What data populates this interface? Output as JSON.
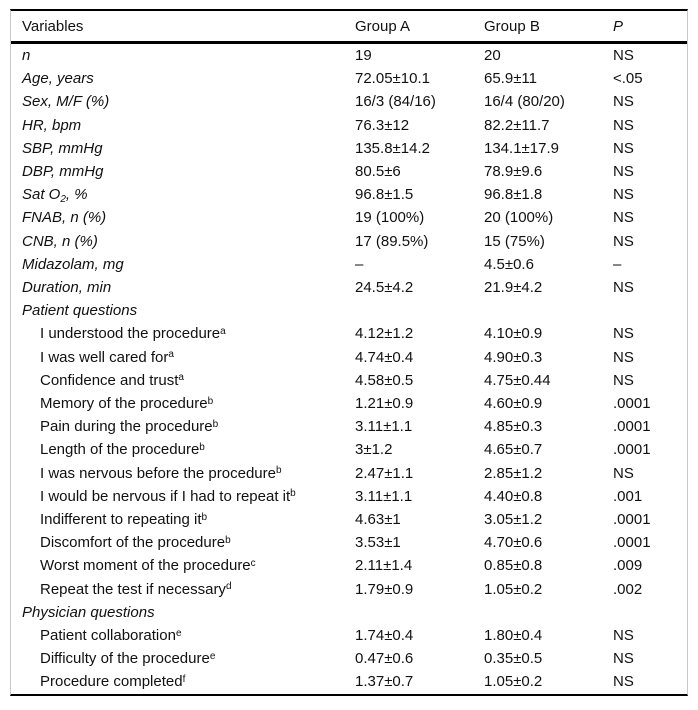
{
  "colors": {
    "background": "#ffffff",
    "text": "#111111",
    "rule": "#000000",
    "frame": "#c9c9c9"
  },
  "table": {
    "columns": [
      "Variables",
      "Group A",
      "Group B",
      "P"
    ],
    "rows": [
      {
        "italic": true,
        "indent": false,
        "section": false,
        "label": [
          [
            "t",
            "n"
          ]
        ],
        "values": [
          "19",
          "20",
          "NS"
        ]
      },
      {
        "italic": true,
        "indent": false,
        "section": false,
        "label": [
          [
            "t",
            "Age, years"
          ]
        ],
        "values": [
          "72.05±10.1",
          "65.9±11",
          "<.05"
        ]
      },
      {
        "italic": true,
        "indent": false,
        "section": false,
        "label": [
          [
            "t",
            "Sex, M/F (%)"
          ]
        ],
        "values": [
          "16/3 (84/16)",
          "16/4 (80/20)",
          "NS"
        ]
      },
      {
        "italic": true,
        "indent": false,
        "section": false,
        "label": [
          [
            "t",
            "HR, bpm"
          ]
        ],
        "values": [
          "76.3±12",
          "82.2±11.7",
          "NS"
        ]
      },
      {
        "italic": true,
        "indent": false,
        "section": false,
        "label": [
          [
            "t",
            "SBP, mmHg"
          ]
        ],
        "values": [
          "135.8±14.2",
          "134.1±17.9",
          "NS"
        ]
      },
      {
        "italic": true,
        "indent": false,
        "section": false,
        "label": [
          [
            "t",
            "DBP, mmHg"
          ]
        ],
        "values": [
          "80.5±6",
          "78.9±9.6",
          "NS"
        ]
      },
      {
        "italic": true,
        "indent": false,
        "section": false,
        "label": [
          [
            "t",
            "Sat O"
          ],
          [
            "sub",
            "2"
          ],
          [
            "t",
            ", %"
          ]
        ],
        "values": [
          "96.8±1.5",
          "96.8±1.8",
          "NS"
        ]
      },
      {
        "italic": true,
        "indent": false,
        "section": false,
        "label": [
          [
            "t",
            "FNAB, n (%)"
          ]
        ],
        "values": [
          "19 (100%)",
          "20 (100%)",
          "NS"
        ]
      },
      {
        "italic": true,
        "indent": false,
        "section": false,
        "label": [
          [
            "t",
            "CNB, n (%)"
          ]
        ],
        "values": [
          "17 (89.5%)",
          "15 (75%)",
          "NS"
        ]
      },
      {
        "italic": true,
        "indent": false,
        "section": false,
        "label": [
          [
            "t",
            "Midazolam, mg"
          ]
        ],
        "values": [
          "–",
          "4.5±0.6",
          "–"
        ]
      },
      {
        "italic": true,
        "indent": false,
        "section": false,
        "label": [
          [
            "t",
            "Duration, min"
          ]
        ],
        "values": [
          "24.5±4.2",
          "21.9±4.2",
          "NS"
        ]
      },
      {
        "italic": true,
        "indent": false,
        "section": true,
        "label": [
          [
            "t",
            "Patient questions"
          ]
        ],
        "values": [
          "",
          "",
          ""
        ]
      },
      {
        "italic": false,
        "indent": true,
        "section": false,
        "label": [
          [
            "t",
            "I understood the procedure"
          ],
          [
            "sup",
            "a"
          ]
        ],
        "values": [
          "4.12±1.2",
          "4.10±0.9",
          "NS"
        ]
      },
      {
        "italic": false,
        "indent": true,
        "section": false,
        "label": [
          [
            "t",
            "I was well cared for"
          ],
          [
            "sup",
            "a"
          ]
        ],
        "values": [
          "4.74±0.4",
          "4.90±0.3",
          "NS"
        ]
      },
      {
        "italic": false,
        "indent": true,
        "section": false,
        "label": [
          [
            "t",
            "Confidence and trust"
          ],
          [
            "sup",
            "a"
          ]
        ],
        "values": [
          "4.58±0.5",
          "4.75±0.44",
          "NS"
        ]
      },
      {
        "italic": false,
        "indent": true,
        "section": false,
        "label": [
          [
            "t",
            "Memory of the procedure"
          ],
          [
            "sup",
            "b"
          ]
        ],
        "values": [
          "1.21±0.9",
          "4.60±0.9",
          ".0001"
        ]
      },
      {
        "italic": false,
        "indent": true,
        "section": false,
        "label": [
          [
            "t",
            "Pain during the procedure"
          ],
          [
            "sup",
            "b"
          ]
        ],
        "values": [
          "3.11±1.1",
          "4.85±0.3",
          ".0001"
        ]
      },
      {
        "italic": false,
        "indent": true,
        "section": false,
        "label": [
          [
            "t",
            "Length of the procedure"
          ],
          [
            "sup",
            "b"
          ]
        ],
        "values": [
          "3±1.2",
          "4.65±0.7",
          ".0001"
        ]
      },
      {
        "italic": false,
        "indent": true,
        "section": false,
        "label": [
          [
            "t",
            "I was nervous before the procedure"
          ],
          [
            "sup",
            "b"
          ]
        ],
        "values": [
          "2.47±1.1",
          "2.85±1.2",
          "NS"
        ]
      },
      {
        "italic": false,
        "indent": true,
        "section": false,
        "label": [
          [
            "t",
            "I would be nervous if I had to repeat it"
          ],
          [
            "sup",
            "b"
          ]
        ],
        "values": [
          "3.11±1.1",
          "4.40±0.8",
          ".001"
        ]
      },
      {
        "italic": false,
        "indent": true,
        "section": false,
        "label": [
          [
            "t",
            "Indifferent to repeating it"
          ],
          [
            "sup",
            "b"
          ]
        ],
        "values": [
          "4.63±1",
          "3.05±1.2",
          ".0001"
        ]
      },
      {
        "italic": false,
        "indent": true,
        "section": false,
        "label": [
          [
            "t",
            "Discomfort of the procedure"
          ],
          [
            "sup",
            "b"
          ]
        ],
        "values": [
          "3.53±1",
          "4.70±0.6",
          ".0001"
        ]
      },
      {
        "italic": false,
        "indent": true,
        "section": false,
        "label": [
          [
            "t",
            "Worst moment of the procedure"
          ],
          [
            "sup",
            "c"
          ]
        ],
        "values": [
          "2.11±1.4",
          "0.85±0.8",
          ".009"
        ]
      },
      {
        "italic": false,
        "indent": true,
        "section": false,
        "label": [
          [
            "t",
            "Repeat the test if necessary"
          ],
          [
            "sup",
            "d"
          ]
        ],
        "values": [
          "1.79±0.9",
          "1.05±0.2",
          ".002"
        ]
      },
      {
        "italic": true,
        "indent": false,
        "section": true,
        "label": [
          [
            "t",
            "Physician questions"
          ]
        ],
        "values": [
          "",
          "",
          ""
        ]
      },
      {
        "italic": false,
        "indent": true,
        "section": false,
        "label": [
          [
            "t",
            "Patient collaboration"
          ],
          [
            "sup",
            "e"
          ]
        ],
        "values": [
          "1.74±0.4",
          "1.80±0.4",
          "NS"
        ]
      },
      {
        "italic": false,
        "indent": true,
        "section": false,
        "label": [
          [
            "t",
            "Difficulty of the procedure"
          ],
          [
            "sup",
            "e"
          ]
        ],
        "values": [
          "0.47±0.6",
          "0.35±0.5",
          "NS"
        ]
      },
      {
        "italic": false,
        "indent": true,
        "section": false,
        "label": [
          [
            "t",
            "Procedure completed"
          ],
          [
            "sup",
            "f"
          ]
        ],
        "values": [
          "1.37±0.7",
          "1.05±0.2",
          "NS"
        ]
      }
    ]
  }
}
